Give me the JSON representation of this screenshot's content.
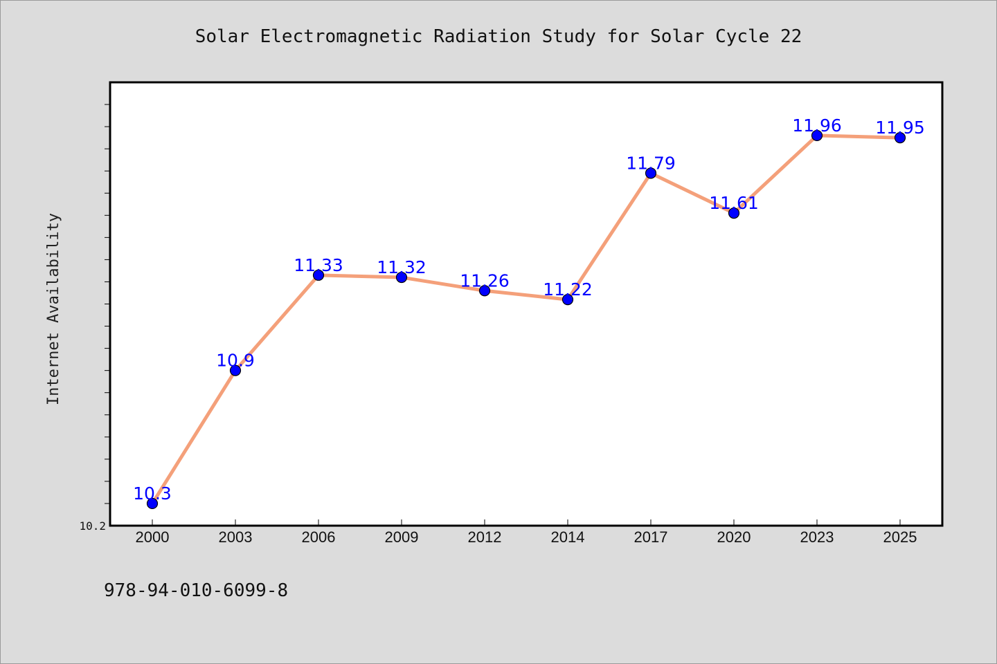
{
  "chart_data": {
    "type": "line",
    "title": "Solar Electromagnetic Radiation Study for Solar Cycle 22",
    "xlabel": "",
    "ylabel": "Internet Availability",
    "categories": [
      "2000",
      "2003",
      "2006",
      "2009",
      "2012",
      "2014",
      "2017",
      "2020",
      "2023",
      "2025"
    ],
    "values": [
      10.3,
      10.9,
      11.33,
      11.32,
      11.26,
      11.22,
      11.79,
      11.61,
      11.96,
      11.95
    ],
    "data_labels": [
      "10.3",
      "10.9",
      "11.33",
      "11.32",
      "11.26",
      "11.22",
      "11.79",
      "11.61",
      "11.96",
      "11.95"
    ],
    "ylim": [
      10.2,
      12.2
    ],
    "y_tick_labels": [
      "10.2"
    ],
    "grid": false,
    "line_color": "#f4a07a",
    "marker_color": "#0000ff",
    "label_color": "#0000ff"
  },
  "footer_text": "978-94-010-6099-8"
}
